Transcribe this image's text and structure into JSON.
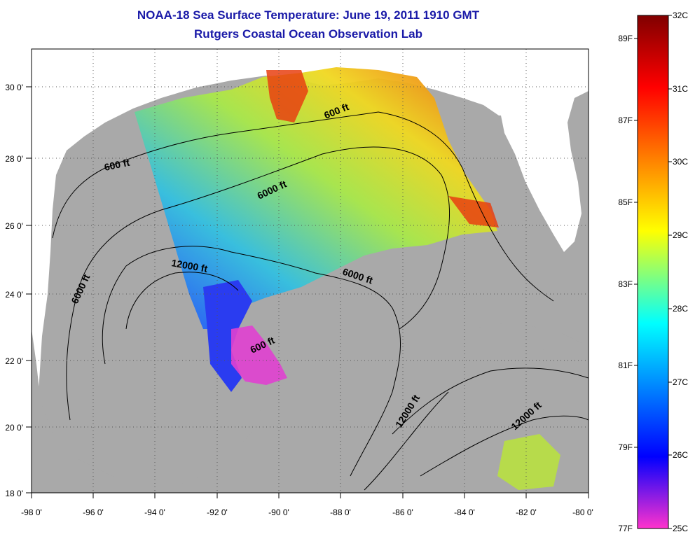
{
  "header": {
    "title": "NOAA-18 Sea Surface Temperature:  June 19, 2011 1910 GMT",
    "subtitle": "Rutgers Coastal Ocean Observation Lab"
  },
  "map": {
    "lon_range": [
      -98,
      -80
    ],
    "lat_range": [
      18,
      31
    ],
    "lon_labels": [
      "-98 0'",
      "-96 0'",
      "-94 0'",
      "-92 0'",
      "-90 0'",
      "-88 0'",
      "-86 0'",
      "-84 0'",
      "-82 0'",
      "-80 0'"
    ],
    "lat_labels": [
      "18 0'",
      "20 0'",
      "22 0'",
      "24 0'",
      "26 0'",
      "28 0'",
      "30 0'"
    ],
    "contour_labels": [
      "600 ft",
      "600 ft",
      "6000 ft",
      "12000 ft",
      "6000 ft",
      "6000 ft",
      "600 ft",
      "12000 ft",
      "12000 ft"
    ],
    "colors": {
      "land": "#a9a9a9",
      "ocean": "#ffffff",
      "contour": "#000000"
    }
  },
  "colorbar": {
    "celsius_labels": [
      "32C",
      "31C",
      "30C",
      "29C",
      "28C",
      "27C",
      "26C",
      "25C"
    ],
    "fahrenheit_labels": [
      "89F",
      "87F",
      "85F",
      "83F",
      "81F",
      "79F",
      "77F"
    ],
    "range_c": [
      25,
      32
    ],
    "colors": [
      "#800000",
      "#ff0000",
      "#ff8000",
      "#ffff00",
      "#00ffff",
      "#0000ff",
      "#ff00ff"
    ]
  }
}
